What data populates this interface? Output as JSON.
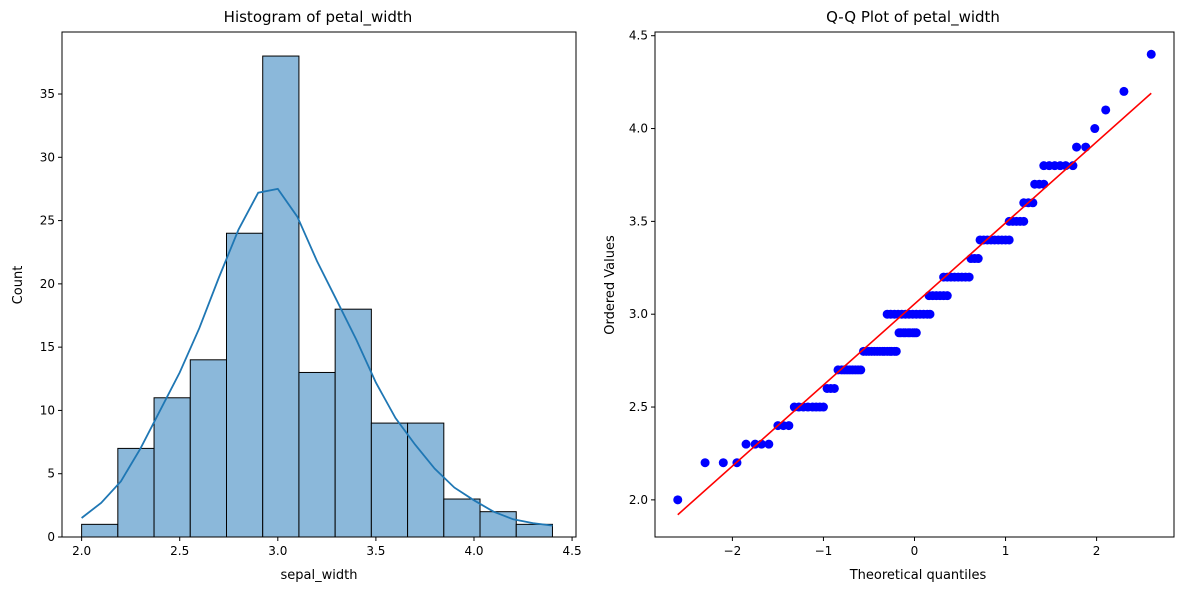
{
  "chart_data": [
    {
      "type": "bar",
      "title": "Histogram of petal_width",
      "xlabel": "sepal_width",
      "ylabel": "Count",
      "xlim": [
        1.9,
        4.52
      ],
      "ylim": [
        0,
        39.9
      ],
      "xticks": [
        "2.0",
        "2.5",
        "3.0",
        "3.5",
        "4.0",
        "4.5"
      ],
      "yticks": [
        "0",
        "5",
        "10",
        "15",
        "20",
        "25",
        "30",
        "35"
      ],
      "bin_edges": [
        2.0,
        2.1846,
        2.3692,
        2.5538,
        2.7385,
        2.9231,
        3.1077,
        3.2923,
        3.4769,
        3.6615,
        3.8462,
        4.0308,
        4.2154,
        4.4
      ],
      "counts": [
        1,
        7,
        11,
        14,
        24,
        38,
        13,
        18,
        9,
        9,
        3,
        2,
        1
      ],
      "bar_color": "#8bb8da",
      "edge_color": "#000000",
      "kde": {
        "color": "#1f77b4",
        "x": [
          2.0,
          2.1,
          2.2,
          2.3,
          2.4,
          2.5,
          2.6,
          2.7,
          2.8,
          2.9,
          3.0,
          3.1,
          3.2,
          3.3,
          3.4,
          3.5,
          3.6,
          3.7,
          3.8,
          3.9,
          4.0,
          4.1,
          4.2,
          4.3,
          4.4
        ],
        "y": [
          1.5,
          2.7,
          4.4,
          7.0,
          10.0,
          13.0,
          16.5,
          20.5,
          24.3,
          27.2,
          27.5,
          25.3,
          21.8,
          18.7,
          15.6,
          12.2,
          9.4,
          7.3,
          5.4,
          3.9,
          2.9,
          2.0,
          1.4,
          1.1,
          0.9
        ]
      },
      "grid": false
    },
    {
      "type": "scatter",
      "title": "Q-Q Plot of petal_width",
      "xlabel": "Theoretical quantiles",
      "ylabel": "Ordered Values",
      "xlim": [
        -2.85,
        2.85
      ],
      "ylim": [
        1.8,
        4.52
      ],
      "xticks": [
        "−2",
        "−1",
        "0",
        "1",
        "2"
      ],
      "yticks": [
        "2.0",
        "2.5",
        "3.0",
        "3.5",
        "4.0",
        "4.5"
      ],
      "point_color": "#0000ff",
      "line_color": "#ff0000",
      "fit_line": {
        "x": [
          -2.6,
          2.6
        ],
        "y": [
          1.92,
          4.19
        ]
      },
      "points": [
        [
          -2.6,
          2.0
        ],
        [
          -2.3,
          2.2
        ],
        [
          -2.1,
          2.2
        ],
        [
          -1.95,
          2.2
        ],
        [
          -1.85,
          2.3
        ],
        [
          -1.75,
          2.3
        ],
        [
          -1.68,
          2.3
        ],
        [
          -1.6,
          2.3
        ],
        [
          -1.5,
          2.4
        ],
        [
          -1.44,
          2.4
        ],
        [
          -1.38,
          2.4
        ],
        [
          -1.32,
          2.5
        ],
        [
          -1.27,
          2.5
        ],
        [
          -1.22,
          2.5
        ],
        [
          -1.17,
          2.5
        ],
        [
          -1.12,
          2.5
        ],
        [
          -1.08,
          2.5
        ],
        [
          -1.04,
          2.5
        ],
        [
          -1.0,
          2.5
        ],
        [
          -0.96,
          2.6
        ],
        [
          -0.92,
          2.6
        ],
        [
          -0.88,
          2.6
        ],
        [
          -0.84,
          2.7
        ],
        [
          -0.8,
          2.7
        ],
        [
          -0.77,
          2.7
        ],
        [
          -0.74,
          2.7
        ],
        [
          -0.71,
          2.7
        ],
        [
          -0.68,
          2.7
        ],
        [
          -0.65,
          2.7
        ],
        [
          -0.62,
          2.7
        ],
        [
          -0.59,
          2.7
        ],
        [
          -0.56,
          2.8
        ],
        [
          -0.53,
          2.8
        ],
        [
          -0.5,
          2.8
        ],
        [
          -0.47,
          2.8
        ],
        [
          -0.44,
          2.8
        ],
        [
          -0.41,
          2.8
        ],
        [
          -0.38,
          2.8
        ],
        [
          -0.35,
          2.8
        ],
        [
          -0.33,
          2.8
        ],
        [
          -0.3,
          2.8
        ],
        [
          -0.27,
          2.8
        ],
        [
          -0.25,
          2.8
        ],
        [
          -0.22,
          2.8
        ],
        [
          -0.2,
          2.8
        ],
        [
          -0.17,
          2.9
        ],
        [
          -0.15,
          2.9
        ],
        [
          -0.12,
          2.9
        ],
        [
          -0.1,
          2.9
        ],
        [
          -0.07,
          2.9
        ],
        [
          -0.05,
          2.9
        ],
        [
          -0.02,
          2.9
        ],
        [
          0.0,
          2.9
        ],
        [
          0.02,
          2.9
        ],
        [
          -0.3,
          3.0
        ],
        [
          -0.26,
          3.0
        ],
        [
          -0.22,
          3.0
        ],
        [
          -0.18,
          3.0
        ],
        [
          -0.14,
          3.0
        ],
        [
          -0.1,
          3.0
        ],
        [
          -0.06,
          3.0
        ],
        [
          -0.02,
          3.0
        ],
        [
          0.02,
          3.0
        ],
        [
          0.06,
          3.0
        ],
        [
          0.1,
          3.0
        ],
        [
          0.14,
          3.0
        ],
        [
          0.17,
          3.0
        ],
        [
          0.16,
          3.1
        ],
        [
          0.2,
          3.1
        ],
        [
          0.24,
          3.1
        ],
        [
          0.28,
          3.1
        ],
        [
          0.32,
          3.1
        ],
        [
          0.36,
          3.1
        ],
        [
          0.32,
          3.2
        ],
        [
          0.36,
          3.2
        ],
        [
          0.4,
          3.2
        ],
        [
          0.44,
          3.2
        ],
        [
          0.48,
          3.2
        ],
        [
          0.52,
          3.2
        ],
        [
          0.56,
          3.2
        ],
        [
          0.6,
          3.2
        ],
        [
          0.62,
          3.3
        ],
        [
          0.66,
          3.3
        ],
        [
          0.7,
          3.3
        ],
        [
          0.72,
          3.4
        ],
        [
          0.76,
          3.4
        ],
        [
          0.8,
          3.4
        ],
        [
          0.84,
          3.4
        ],
        [
          0.88,
          3.4
        ],
        [
          0.92,
          3.4
        ],
        [
          0.96,
          3.4
        ],
        [
          1.0,
          3.4
        ],
        [
          1.04,
          3.4
        ],
        [
          1.04,
          3.5
        ],
        [
          1.08,
          3.5
        ],
        [
          1.12,
          3.5
        ],
        [
          1.16,
          3.5
        ],
        [
          1.2,
          3.5
        ],
        [
          1.2,
          3.6
        ],
        [
          1.25,
          3.6
        ],
        [
          1.3,
          3.6
        ],
        [
          1.32,
          3.7
        ],
        [
          1.37,
          3.7
        ],
        [
          1.42,
          3.7
        ],
        [
          1.42,
          3.8
        ],
        [
          1.48,
          3.8
        ],
        [
          1.54,
          3.8
        ],
        [
          1.6,
          3.8
        ],
        [
          1.66,
          3.8
        ],
        [
          1.74,
          3.8
        ],
        [
          1.78,
          3.9
        ],
        [
          1.88,
          3.9
        ],
        [
          1.98,
          4.0
        ],
        [
          2.1,
          4.1
        ],
        [
          2.3,
          4.2
        ],
        [
          2.6,
          4.4
        ]
      ],
      "grid": false
    }
  ]
}
